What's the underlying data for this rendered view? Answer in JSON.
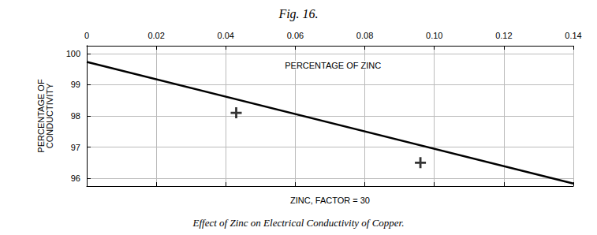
{
  "chart_data": {
    "type": "line",
    "title": "Fig. 16.",
    "caption": "Effect of Zinc on Electrical Conductivity of Copper.",
    "xlabel": "ZINC, FACTOR = 30",
    "ylabel": "PERCENTAGE OF\nCONDUCTIVITY",
    "series": [
      {
        "type": "line",
        "color": "#000000",
        "x": [
          0,
          0.14
        ],
        "values": [
          99.73,
          95.83
        ]
      },
      {
        "type": "scatter",
        "marker": "plus",
        "color": "#000000",
        "x": [
          0.043,
          0.096
        ],
        "values": [
          98.1,
          96.5
        ]
      }
    ],
    "annotations": [
      {
        "text": "PERCENTAGE OF ZINC",
        "x": 0.057,
        "y": 99.82
      }
    ],
    "xlim": [
      0,
      0.14
    ],
    "xticks": [
      0,
      0.02,
      0.04,
      0.06,
      0.08,
      {
        "value": 0.1,
        "label": "0.10"
      },
      0.12,
      0.14
    ],
    "ylim": [
      95.75,
      100.25
    ],
    "yticks": [
      96,
      97,
      98,
      99,
      100
    ],
    "grid": true
  }
}
